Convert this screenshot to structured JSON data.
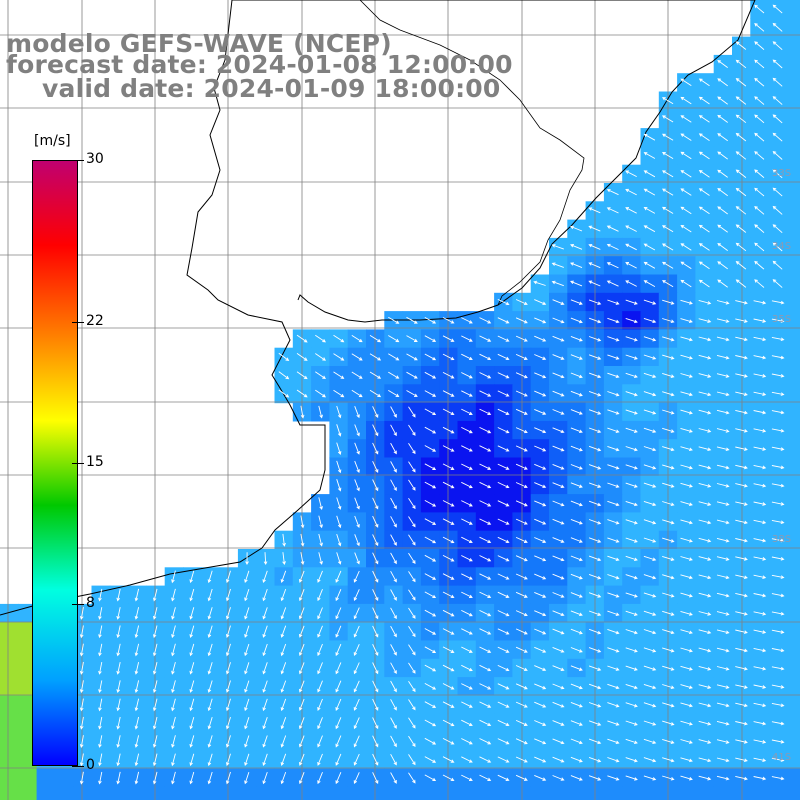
{
  "header": {
    "model_line": "modelo GEFS-WAVE (NCEP)",
    "forecast_line": "forecast date: 2024-01-08 12:00:00",
    "valid_line": "valid date: 2024-01-09 18:00:00"
  },
  "colorbar": {
    "unit": "[m/s]",
    "ticks": [
      {
        "label": "30",
        "value": 30
      },
      {
        "label": "22",
        "value": 22
      },
      {
        "label": "15",
        "value": 15
      },
      {
        "label": "8",
        "value": 8
      },
      {
        "label": "0",
        "value": 0
      }
    ],
    "range": [
      0,
      30
    ],
    "colors": [
      "#0000ff",
      "#00a0ff",
      "#00ffe0",
      "#00c800",
      "#ffff00",
      "#ff8000",
      "#ff0000",
      "#c00070"
    ]
  },
  "map": {
    "latitude_labels": [
      "33S",
      "34S",
      "35S",
      "38S",
      "41S"
    ],
    "ocean_color": "#1e90ff",
    "land_color": "#ffffff",
    "gridline_color": "#808080"
  }
}
